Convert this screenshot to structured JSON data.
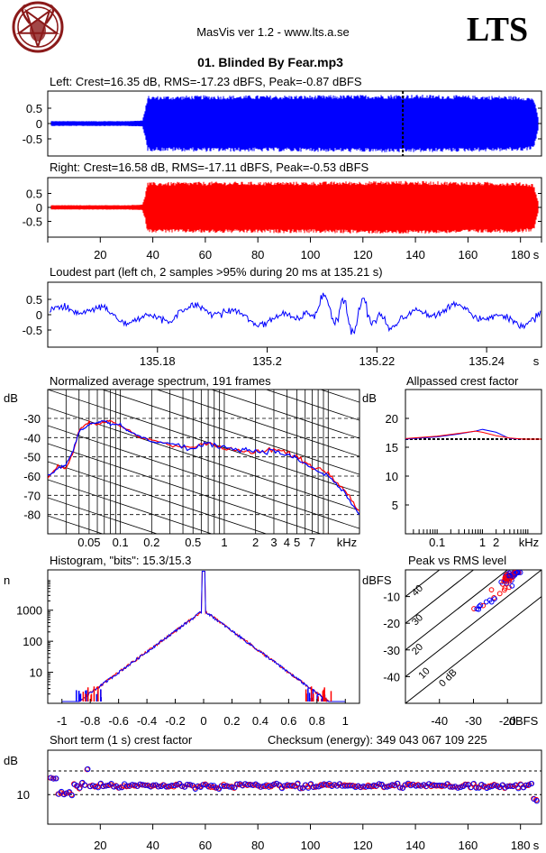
{
  "header": {
    "app_title": "MasVis ver 1.2 - www.lts.a.se",
    "file_title": "01. Blinded By Fear.mp3",
    "logo_text": "LTS"
  },
  "colors": {
    "left": "#0000ff",
    "right": "#ff0000",
    "grid": "#000000",
    "logo": "#8b1a1a"
  },
  "chart_data": [
    {
      "id": "left",
      "type": "area",
      "title": "Left: Crest=16.35 dB, RMS=-17.23 dBFS, Peak=-0.87 dBFS",
      "ylim": [
        -1,
        1
      ],
      "yticks": [
        "0.5",
        "0",
        "-0.5"
      ],
      "envelope": {
        "x": [
          0,
          1,
          30,
          36,
          37,
          38,
          40,
          60,
          100,
          135,
          160,
          180,
          185,
          187
        ],
        "amp": [
          0.08,
          0.08,
          0.08,
          0.1,
          0.4,
          0.9,
          0.9,
          0.92,
          0.92,
          0.95,
          0.92,
          0.9,
          0.85,
          0.1
        ]
      },
      "marker_x": 135.21
    },
    {
      "id": "right",
      "type": "area",
      "title": "Right: Crest=16.58 dB, RMS=-17.11 dBFS, Peak=-0.53 dBFS",
      "ylim": [
        -1,
        1
      ],
      "yticks": [
        "0.5",
        "0",
        "-0.5"
      ],
      "envelope": {
        "x": [
          0,
          1,
          30,
          36,
          37,
          38,
          40,
          60,
          100,
          135,
          160,
          180,
          185,
          187
        ],
        "amp": [
          0.08,
          0.08,
          0.08,
          0.1,
          0.4,
          0.9,
          0.9,
          0.92,
          0.92,
          0.95,
          0.92,
          0.9,
          0.85,
          0.1
        ]
      },
      "xticks": [
        "20",
        "40",
        "60",
        "80",
        "100",
        "120",
        "140",
        "160",
        "180",
        "s"
      ]
    },
    {
      "id": "loudest",
      "type": "line",
      "title": "Loudest part (left  ch, 2 samples >95% during 20 ms at 135.21 s)",
      "xlim": [
        135.16,
        135.25
      ],
      "ylim": [
        -1,
        1
      ],
      "yticks": [
        "0.5",
        "0",
        "-0.5"
      ],
      "xticks": [
        "135.18",
        "135.2",
        "135.22",
        "135.24",
        "s"
      ]
    },
    {
      "id": "spectrum",
      "type": "line",
      "title": "Normalized average spectrum, 191 frames",
      "ylabel": "dB",
      "xlabel": "kHz",
      "ylim": [
        -90,
        -15
      ],
      "yticks": [
        "-30",
        "-40",
        "-50",
        "-60",
        "-70",
        "-80"
      ],
      "xticks": [
        "0.05",
        "0.1",
        "0.2",
        "0.5",
        "1",
        "2",
        "3",
        "4",
        "5",
        "7",
        "kHz"
      ],
      "series": [
        {
          "x": [
            0.02,
            0.025,
            0.03,
            0.035,
            0.04,
            0.05,
            0.06,
            0.07,
            0.08,
            0.1,
            0.12,
            0.15,
            0.2,
            0.3,
            0.5,
            0.7,
            1,
            1.5,
            2,
            3,
            4,
            5,
            7,
            10,
            14,
            20
          ],
          "values": [
            -61,
            -55,
            -56,
            -48,
            -36,
            -32,
            -33,
            -32,
            -31,
            -34,
            -36,
            -40,
            -41,
            -44,
            -45,
            -42,
            -46,
            -47,
            -48,
            -46,
            -48,
            -50,
            -55,
            -58,
            -66,
            -78
          ]
        },
        {
          "x": [
            0.02,
            0.025,
            0.03,
            0.035,
            0.04,
            0.05,
            0.06,
            0.07,
            0.08,
            0.1,
            0.12,
            0.15,
            0.2,
            0.3,
            0.5,
            0.7,
            1,
            1.5,
            2,
            3,
            4,
            5,
            7,
            10,
            14,
            20
          ],
          "values": [
            -60,
            -56,
            -54,
            -47,
            -37,
            -33,
            -32,
            -31,
            -33,
            -33,
            -37,
            -39,
            -42,
            -43,
            -46,
            -43,
            -45,
            -46,
            -47,
            -47,
            -49,
            -51,
            -56,
            -60,
            -68,
            -80
          ]
        }
      ]
    },
    {
      "id": "allpassed",
      "type": "line",
      "title": "Allpassed crest factor",
      "ylabel": "dB",
      "xlabel": "kHz",
      "ylim": [
        0,
        25
      ],
      "yticks": [
        "20",
        "15",
        "10",
        "5"
      ],
      "xticks": [
        "0.1",
        "1",
        "2",
        "kHz"
      ],
      "reference": 16.4,
      "series": [
        {
          "x": [
            0.02,
            0.1,
            0.3,
            0.7,
            1,
            2,
            4,
            8,
            20
          ],
          "values": [
            16.4,
            16.8,
            17.3,
            17.8,
            18.1,
            17.6,
            16.5,
            16.4,
            16.4
          ]
        },
        {
          "x": [
            0.02,
            0.1,
            0.3,
            0.7,
            1,
            2,
            4,
            8,
            20
          ],
          "values": [
            16.5,
            16.9,
            17.4,
            17.8,
            17.6,
            17.0,
            16.6,
            16.4,
            16.4
          ]
        }
      ]
    },
    {
      "id": "histogram",
      "type": "line",
      "title": "Histogram, \"bits\": 15.3/15.3",
      "ylabel": "n",
      "xlim": [
        -1.1,
        1.1
      ],
      "yticks": [
        "1000",
        "100",
        "10"
      ],
      "xticks": [
        "-1",
        "-0.8",
        "-0.6",
        "-0.4",
        "-0.2",
        "0",
        "0.2",
        "0.4",
        "0.6",
        "0.8",
        "1"
      ]
    },
    {
      "id": "peakrms",
      "type": "scatter",
      "title": "Peak vs RMS level",
      "ylabel": "dBFS",
      "xlabel": "dBFS",
      "xlim": [
        -50,
        -10
      ],
      "ylim": [
        -50,
        0
      ],
      "yticks": [
        "-10",
        "-20",
        "-30",
        "-40"
      ],
      "xticks": [
        "-40",
        "-30",
        "-20",
        "dBFS"
      ],
      "diag_labels": [
        "40",
        "30",
        "20",
        "10",
        "0 dB"
      ]
    },
    {
      "id": "crest",
      "type": "scatter",
      "title": "Short term (1 s) crest factor",
      "checksum": "Checksum (energy):   349 043 067 109 225",
      "ylabel": "dB",
      "yticks": [
        "10"
      ],
      "xticks": [
        "20",
        "40",
        "60",
        "80",
        "100",
        "120",
        "140",
        "160",
        "180",
        "s"
      ]
    }
  ]
}
